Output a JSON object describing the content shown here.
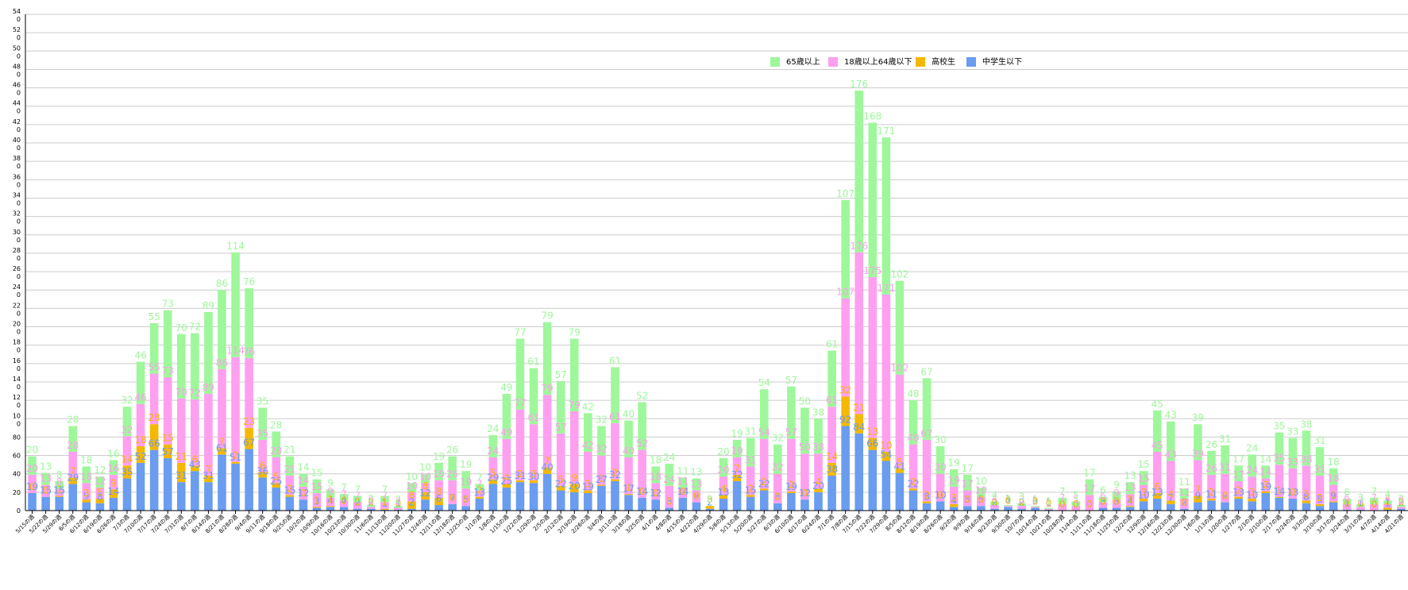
{
  "chart_data": {
    "type": "bar",
    "stacked": true,
    "title": "",
    "xlabel": "",
    "ylabel": "",
    "ylim": [
      0,
      540
    ],
    "yticks": [
      0,
      20,
      40,
      60,
      80,
      100,
      120,
      140,
      160,
      180,
      200,
      220,
      240,
      260,
      280,
      300,
      320,
      340,
      360,
      380,
      400,
      420,
      440,
      460,
      480,
      500,
      520,
      540
    ],
    "grid": true,
    "legend_position": "top-right",
    "categories": [
      "5/15の週",
      "5/22の週",
      "5/29の週",
      "6/5の週",
      "6/12の週",
      "6/19の週",
      "6/26の週",
      "7/3の週",
      "7/10の週",
      "7/17の週",
      "7/24の週",
      "7/31の週",
      "8/7の週",
      "8/14の週",
      "8/21の週",
      "8/28の週",
      "9/4の週",
      "9/11の週",
      "9/18の週",
      "9/25の週",
      "10/2の週",
      "10/9の週",
      "10/16の週",
      "10/23の週",
      "10/30の週",
      "11/6の週",
      "11/13の週",
      "11/20の週",
      "11/27の週",
      "12/4の週",
      "12/11の週",
      "12/18の週",
      "12/25の週",
      "1/1の週",
      "1/8の週",
      "1/15の週",
      "1/22の週",
      "1/29の週",
      "2/5の週",
      "2/12の週",
      "2/19の週",
      "2/26の週",
      "3/4の週",
      "3/11の週",
      "3/18の週",
      "3/25の週",
      "4/1の週",
      "4/8の週",
      "4/15の週",
      "4/22の週",
      "4/29の週",
      "5/6の週",
      "5/13の週",
      "5/20の週",
      "5/27の週",
      "6/3の週",
      "6/10の週",
      "6/17の週",
      "6/24の週",
      "7/1の週",
      "7/8の週",
      "7/15の週",
      "7/22の週",
      "7/29の週",
      "8/5の週",
      "8/12の週",
      "8/19の週",
      "8/26の週",
      "9/2の週",
      "9/9の週",
      "9/16の週",
      "9/23の週",
      "9/30の週",
      "10/7の週",
      "10/14の週",
      "10/21の週",
      "10/28の週",
      "11/4の週",
      "11/11の週",
      "11/18の週",
      "11/25の週",
      "12/2の週",
      "12/9の週",
      "12/16の週",
      "12/23の週",
      "12/30の週",
      "1/6の週",
      "1/13の週",
      "1/20の週",
      "1/27の週",
      "2/3の週",
      "2/10の週",
      "2/17の週",
      "2/24の週",
      "3/3の週",
      "3/10の週",
      "3/17の週",
      "3/24の週",
      "3/31の週",
      "4/7の週",
      "4/14の週",
      "4/21の週"
    ],
    "series": [
      {
        "name": "中学生以下",
        "color": "#6a9cf0",
        "values": [
          19,
          15,
          15,
          29,
          9,
          8,
          14,
          35,
          52,
          66,
          57,
          31,
          43,
          31,
          61,
          51,
          67,
          36,
          25,
          15,
          12,
          3,
          4,
          4,
          2,
          2,
          1,
          1,
          2,
          12,
          6,
          7,
          5,
          13,
          29,
          25,
          31,
          30,
          40,
          22,
          20,
          19,
          27,
          32,
          17,
          14,
          12,
          3,
          14,
          9,
          2,
          13,
          32,
          15,
          22,
          8,
          19,
          12,
          20,
          38,
          92,
          84,
          66,
          54,
          41,
          22,
          8,
          10,
          4,
          5,
          5,
          2,
          4,
          2,
          3,
          1,
          0,
          0,
          0,
          3,
          3,
          4,
          10,
          13,
          7,
          2,
          9,
          11,
          9,
          13,
          10,
          19,
          14,
          13,
          8,
          5,
          9,
          1,
          1,
          0,
          1,
          2
        ]
      },
      {
        "name": "高校生",
        "color": "#f5b800",
        "values": [
          0,
          0,
          1,
          7,
          3,
          5,
          9,
          14,
          18,
          28,
          15,
          21,
          6,
          7,
          7,
          2,
          23,
          6,
          5,
          2,
          0,
          1,
          1,
          0,
          0,
          0,
          1,
          0,
          8,
          8,
          8,
          0,
          0,
          2,
          5,
          4,
          2,
          3,
          7,
          5,
          9,
          3,
          1,
          2,
          1,
          0,
          0,
          0,
          0,
          0,
          3,
          4,
          7,
          2,
          2,
          0,
          2,
          0,
          4,
          14,
          32,
          21,
          13,
          10,
          5,
          2,
          2,
          0,
          3,
          0,
          0,
          0,
          0,
          0,
          0,
          0,
          0,
          0,
          0,
          0,
          0,
          1,
          3,
          6,
          4,
          0,
          7,
          2,
          0,
          2,
          3,
          2,
          1,
          0,
          3,
          2,
          1,
          0,
          0,
          0,
          2,
          0
        ]
      },
      {
        "name": "18歳以上64歳以下",
        "color": "#ff9ff0",
        "values": [
          20,
          13,
          8,
          28,
          18,
          12,
          16,
          32,
          46,
          55,
          73,
          70,
          72,
          89,
          86,
          114,
          76,
          35,
          28,
          21,
          14,
          15,
          9,
          7,
          7,
          2,
          7,
          2,
          10,
          10,
          19,
          26,
          19,
          7,
          24,
          49,
          77,
          61,
          79,
          57,
          79,
          42,
          32,
          61,
          40,
          52,
          18,
          24,
          11,
          13,
          0,
          20,
          19,
          31,
          54,
          32,
          57,
          50,
          38,
          61,
          107,
          176,
          175,
          171,
          102,
          48,
          67,
          30,
          19,
          17,
          10,
          4,
          1,
          3,
          1,
          1,
          7,
          5,
          17,
          6,
          9,
          13,
          15,
          45,
          43,
          11,
          39,
          26,
          31,
          17,
          24,
          14,
          35,
          33,
          38,
          31,
          18,
          6,
          3,
          7,
          4,
          2
        ]
      },
      {
        "name": "65歳以上",
        "color": "#9ef79a",
        "values": [
          20,
          13,
          8,
          28,
          18,
          12,
          16,
          32,
          46,
          55,
          73,
          70,
          72,
          89,
          86,
          114,
          76,
          35,
          28,
          21,
          14,
          15,
          9,
          7,
          7,
          2,
          7,
          2,
          10,
          10,
          19,
          26,
          19,
          7,
          24,
          49,
          77,
          61,
          79,
          57,
          79,
          42,
          32,
          61,
          40,
          52,
          18,
          24,
          11,
          13,
          0,
          20,
          19,
          31,
          54,
          32,
          57,
          50,
          38,
          61,
          107,
          176,
          168,
          171,
          102,
          48,
          67,
          30,
          19,
          17,
          10,
          4,
          1,
          3,
          1,
          1,
          7,
          5,
          17,
          6,
          9,
          13,
          15,
          45,
          43,
          11,
          39,
          26,
          31,
          17,
          24,
          14,
          35,
          33,
          38,
          31,
          18,
          6,
          3,
          7,
          4,
          2
        ]
      }
    ],
    "label_colors": [
      "#6a9cf0",
      "#f5b800",
      "#ff9ff0",
      "#9ef79a"
    ]
  }
}
